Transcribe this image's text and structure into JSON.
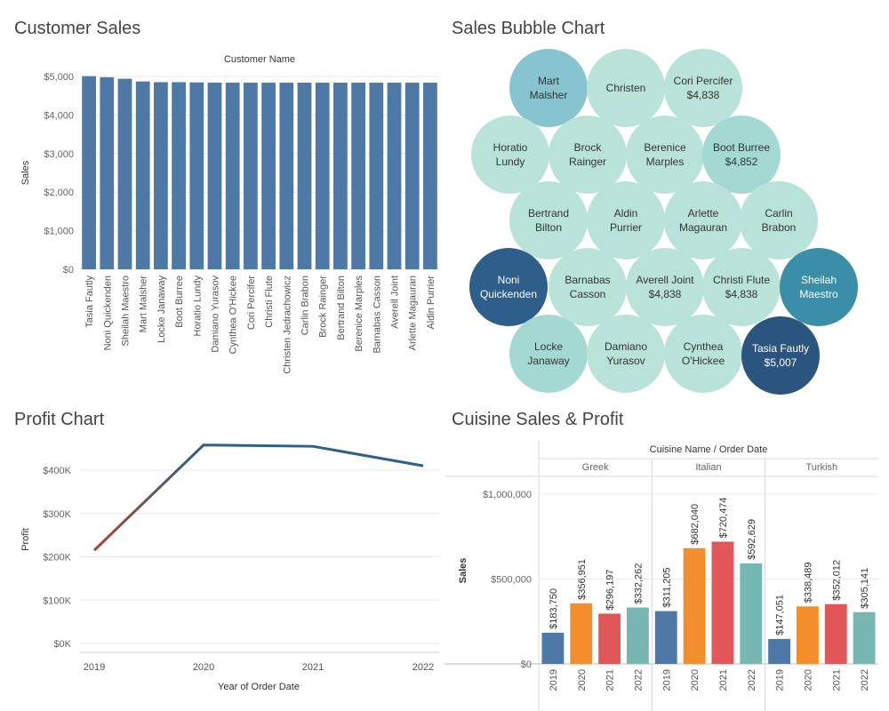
{
  "panels": {
    "customer_sales": {
      "title": "Customer Sales"
    },
    "bubble": {
      "title": "Sales Bubble Chart"
    },
    "profit": {
      "title": "Profit Chart"
    },
    "cuisine": {
      "title": "Cuisine Sales & Profit"
    }
  },
  "chart_data": [
    {
      "id": "customer_sales",
      "type": "bar",
      "title": "Customer Sales",
      "xlabel": "Customer Name",
      "ylabel": "Sales",
      "ylim": [
        0,
        5000
      ],
      "yticks": [
        "$0",
        "$1,000",
        "$2,000",
        "$3,000",
        "$4,000",
        "$5,000"
      ],
      "ytick_values": [
        0,
        1000,
        2000,
        3000,
        4000,
        5000
      ],
      "categories": [
        "Tasia Fautly",
        "Noni Quickenden",
        "Sheilah Maestro",
        "Mart Malsher",
        "Locke Janaway",
        "Boot Burree",
        "Horatio Lundy",
        "Damiano Yurasov",
        "Cynthea O'Hickee",
        "Cori Percifer",
        "Christi Flute",
        "Christen Jedrachowicz",
        "Carlin Brabon",
        "Brock Rainger",
        "Bertrand Bilton",
        "Berenice Marples",
        "Barnabas Casson",
        "Averell Joint",
        "Arlette Magauran",
        "Aldin Purrier"
      ],
      "values": [
        5007,
        4980,
        4940,
        4870,
        4852,
        4852,
        4845,
        4840,
        4838,
        4838,
        4838,
        4838,
        4838,
        4838,
        4838,
        4838,
        4838,
        4838,
        4838,
        4838
      ],
      "color": "#4e79a7",
      "grid": true
    },
    {
      "id": "bubble",
      "type": "bubble",
      "title": "Sales Bubble Chart",
      "bubbles": [
        {
          "name": "Mart Malsher",
          "lines": [
            "Mart",
            "Malsher"
          ],
          "color": "#86c5d0",
          "text_color": "#333333"
        },
        {
          "name": "Christen",
          "lines": [
            "Christen"
          ],
          "color": "#b9e3d9",
          "text_color": "#333333"
        },
        {
          "name": "Cori Percifer",
          "lines": [
            "Cori Percifer",
            "$4,838"
          ],
          "color": "#b9e3d9",
          "text_color": "#333333"
        },
        {
          "name": "Horatio Lundy",
          "lines": [
            "Horatio",
            "Lundy"
          ],
          "color": "#b9e3d9",
          "text_color": "#333333"
        },
        {
          "name": "Brock Rainger",
          "lines": [
            "Brock",
            "Rainger"
          ],
          "color": "#b9e3d9",
          "text_color": "#333333"
        },
        {
          "name": "Berenice Marples",
          "lines": [
            "Berenice",
            "Marples"
          ],
          "color": "#b9e3d9",
          "text_color": "#333333"
        },
        {
          "name": "Boot Burree",
          "lines": [
            "Boot Burree",
            "$4,852"
          ],
          "color": "#a4d8d2",
          "text_color": "#333333"
        },
        {
          "name": "Bertrand Bilton",
          "lines": [
            "Bertrand",
            "Bilton"
          ],
          "color": "#b9e3d9",
          "text_color": "#333333"
        },
        {
          "name": "Aldin Purrier",
          "lines": [
            "Aldin",
            "Purrier"
          ],
          "color": "#b9e3d9",
          "text_color": "#333333"
        },
        {
          "name": "Arlette Magauran",
          "lines": [
            "Arlette",
            "Magauran"
          ],
          "color": "#b9e3d9",
          "text_color": "#333333"
        },
        {
          "name": "Carlin Brabon",
          "lines": [
            "Carlin",
            "Brabon"
          ],
          "color": "#b9e3d9",
          "text_color": "#333333"
        },
        {
          "name": "Noni Quickenden",
          "lines": [
            "Noni",
            "Quickenden"
          ],
          "color": "#2d5f8a",
          "text_color": "#ffffff"
        },
        {
          "name": "Barnabas Casson",
          "lines": [
            "Barnabas",
            "Casson"
          ],
          "color": "#b9e3d9",
          "text_color": "#333333"
        },
        {
          "name": "Averell Joint",
          "lines": [
            "Averell Joint",
            "$4,838"
          ],
          "color": "#b9e3d9",
          "text_color": "#333333"
        },
        {
          "name": "Christi Flute",
          "lines": [
            "Christi Flute",
            "$4,838"
          ],
          "color": "#b9e3d9",
          "text_color": "#333333"
        },
        {
          "name": "Sheilah Maestro",
          "lines": [
            "Sheilah",
            "Maestro"
          ],
          "color": "#3a8ea8",
          "text_color": "#ffffff"
        },
        {
          "name": "Locke Janaway",
          "lines": [
            "Locke",
            "Janaway"
          ],
          "color": "#a4d8d2",
          "text_color": "#333333"
        },
        {
          "name": "Damiano Yurasov",
          "lines": [
            "Damiano",
            "Yurasov"
          ],
          "color": "#b9e3d9",
          "text_color": "#333333"
        },
        {
          "name": "Cynthea O'Hickee",
          "lines": [
            "Cynthea",
            "O'Hickee"
          ],
          "color": "#b9e3d9",
          "text_color": "#333333"
        },
        {
          "name": "Tasia Fautly",
          "lines": [
            "Tasia Fautly",
            "$5,007"
          ],
          "color": "#2b547e",
          "text_color": "#ffffff"
        }
      ]
    },
    {
      "id": "profit",
      "type": "line",
      "title": "Profit Chart",
      "xlabel": "Year of Order Date",
      "ylabel": "Profit",
      "x": [
        "2019",
        "2020",
        "2021",
        "2022"
      ],
      "values": [
        215000,
        458000,
        455000,
        410000
      ],
      "ylim": [
        0,
        480000
      ],
      "yticks": [
        "$0K",
        "$100K",
        "$200K",
        "$300K",
        "$400K"
      ],
      "ytick_values": [
        0,
        100000,
        200000,
        300000,
        400000
      ],
      "color_start": "#b5432a",
      "color_end": "#2d5f8a"
    },
    {
      "id": "cuisine",
      "type": "bar",
      "title": "Cuisine Sales & Profit",
      "header": "Cuisine Name / Order Date",
      "ylabel": "Sales",
      "ylim": [
        0,
        1100000
      ],
      "yticks": [
        "$0",
        "$500,000",
        "$1,000,000"
      ],
      "ytick_values": [
        0,
        500000,
        1000000
      ],
      "years": [
        "2019",
        "2020",
        "2021",
        "2022"
      ],
      "year_colors": [
        "#4e79a7",
        "#f28e2b",
        "#e15759",
        "#76b7b2"
      ],
      "groups": [
        {
          "name": "Greek",
          "values": [
            183750,
            356951,
            296197,
            332262
          ],
          "labels": [
            "$183,750",
            "$356,951",
            "$296,197",
            "$332,262"
          ]
        },
        {
          "name": "Italian",
          "values": [
            311205,
            682040,
            720474,
            592629
          ],
          "labels": [
            "$311,205",
            "$682,040",
            "$720,474",
            "$592,629"
          ]
        },
        {
          "name": "Turkish",
          "values": [
            147051,
            338489,
            352012,
            305141
          ],
          "labels": [
            "$147,051",
            "$338,489",
            "$352,012",
            "$305,141"
          ]
        }
      ]
    }
  ]
}
